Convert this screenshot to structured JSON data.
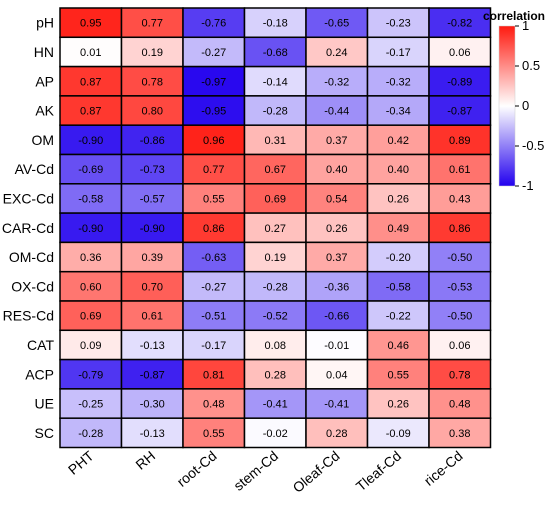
{
  "chart_data": {
    "type": "heatmap",
    "rows": [
      "pH",
      "HN",
      "AP",
      "AK",
      "OM",
      "AV-Cd",
      "EXC-Cd",
      "CAR-Cd",
      "OM-Cd",
      "OX-Cd",
      "RES-Cd",
      "CAT",
      "ACP",
      "UE",
      "SC"
    ],
    "columns": [
      "PHT",
      "RH",
      "root-Cd",
      "stem-Cd",
      "Oleaf-Cd",
      "Tleaf-Cd",
      "rice-Cd"
    ],
    "values": [
      [
        0.95,
        0.77,
        -0.76,
        -0.18,
        -0.65,
        -0.23,
        -0.82
      ],
      [
        0.01,
        0.19,
        -0.27,
        -0.68,
        0.24,
        -0.17,
        0.06
      ],
      [
        0.87,
        0.78,
        -0.97,
        -0.14,
        -0.32,
        -0.32,
        -0.89
      ],
      [
        0.87,
        0.8,
        -0.95,
        -0.28,
        -0.44,
        -0.34,
        -0.87
      ],
      [
        -0.9,
        -0.86,
        0.96,
        0.31,
        0.37,
        0.42,
        0.89
      ],
      [
        -0.69,
        -0.73,
        0.77,
        0.67,
        0.4,
        0.4,
        0.61
      ],
      [
        -0.58,
        -0.57,
        0.55,
        0.69,
        0.54,
        0.26,
        0.43
      ],
      [
        -0.9,
        -0.9,
        0.86,
        0.27,
        0.26,
        0.49,
        0.86
      ],
      [
        0.36,
        0.39,
        -0.63,
        0.19,
        0.37,
        -0.2,
        -0.5
      ],
      [
        0.6,
        0.7,
        -0.27,
        -0.28,
        -0.36,
        -0.58,
        -0.53
      ],
      [
        0.69,
        0.61,
        -0.51,
        -0.52,
        -0.66,
        -0.22,
        -0.5
      ],
      [
        0.09,
        -0.13,
        -0.17,
        0.08,
        -0.01,
        0.46,
        0.06
      ],
      [
        -0.79,
        -0.87,
        0.81,
        0.28,
        0.04,
        0.55,
        0.78
      ],
      [
        -0.25,
        -0.3,
        0.48,
        -0.41,
        -0.41,
        0.26,
        0.48
      ],
      [
        -0.28,
        -0.13,
        0.55,
        -0.02,
        0.28,
        -0.09,
        0.38
      ]
    ],
    "colorbar": {
      "title": "correlation",
      "range": [
        -1,
        1
      ],
      "ticks": [
        1,
        0.5,
        0,
        -0.5,
        -1
      ],
      "tick_labels": [
        "1",
        "0.5",
        "0",
        "-0.5",
        "-1"
      ],
      "colors": {
        "negative": "#2200ee",
        "zero": "#ffffff",
        "positive": "#ff1a10"
      }
    }
  }
}
